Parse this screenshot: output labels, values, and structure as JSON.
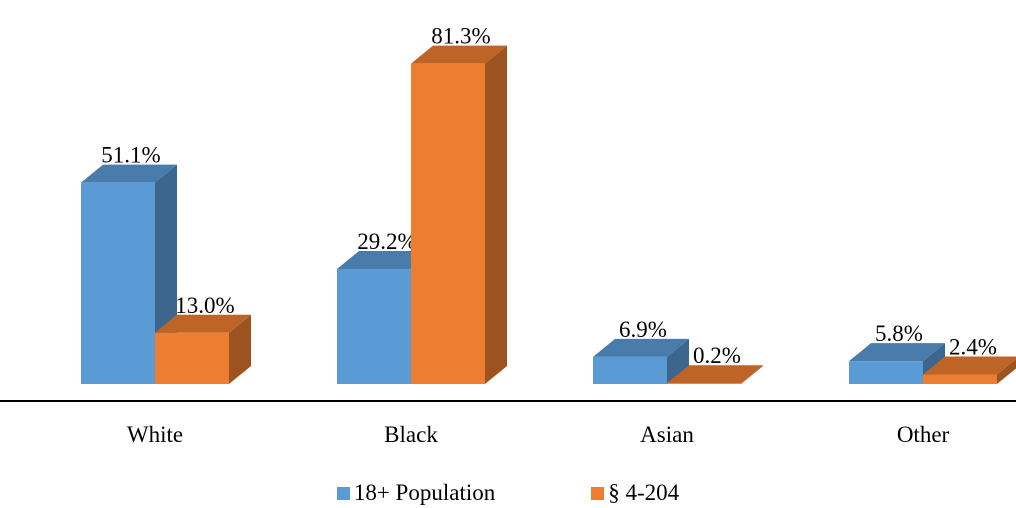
{
  "chart_data": {
    "type": "bar",
    "style": "3d-clustered-column",
    "categories": [
      "White",
      "Black",
      "Asian",
      "Other"
    ],
    "series": [
      {
        "name": "18+ Population",
        "values": [
          51.1,
          29.2,
          6.9,
          5.8
        ],
        "labels": [
          "51.1%",
          "29.2%",
          "6.9%",
          "5.8%"
        ],
        "color": "#5B9BD5"
      },
      {
        "name": "§ 4-204",
        "values": [
          13.0,
          81.3,
          0.2,
          2.4
        ],
        "labels": [
          "13.0%",
          "81.3%",
          "0.2%",
          "2.4%"
        ],
        "color": "#ED7D31"
      }
    ],
    "ylim": [
      0,
      85
    ],
    "value_axis_visible": false,
    "grid": false,
    "legend_position": "bottom"
  }
}
